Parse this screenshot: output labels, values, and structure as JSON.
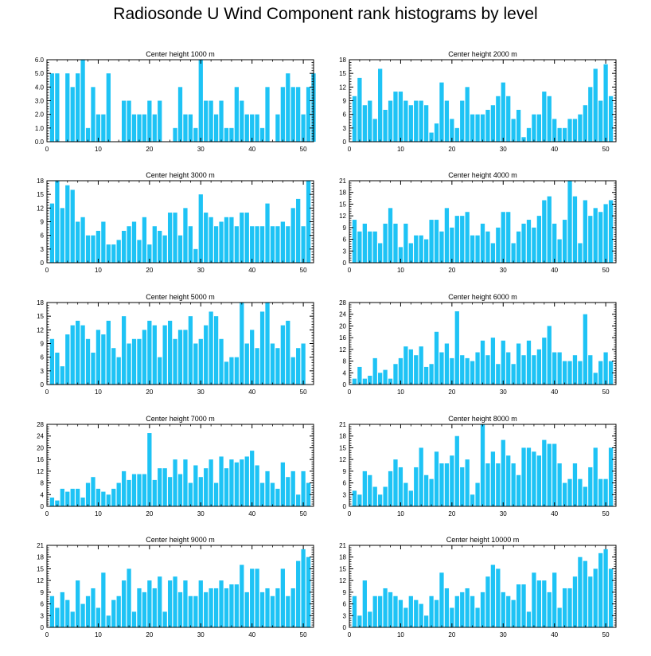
{
  "title": "Radiosonde U Wind Component rank histograms by level",
  "colors": {
    "bar": "#1ec3f5",
    "axis": "#000000",
    "background": "#ffffff"
  },
  "chart_data": [
    {
      "type": "bar",
      "title": "Center height 1000 m",
      "xlabel": "",
      "ylabel": "",
      "xlim": [
        0,
        52
      ],
      "ylim": [
        0,
        6.0
      ],
      "yticks": [
        0.0,
        1.0,
        2.0,
        3.0,
        4.0,
        5.0,
        6.0
      ],
      "ytick_decimals": 1,
      "xticks": [
        0,
        10,
        20,
        30,
        40,
        50
      ],
      "values": [
        5,
        5,
        0,
        5,
        4,
        5,
        6,
        1,
        4,
        2,
        2,
        5,
        0,
        0,
        3,
        3,
        2,
        2,
        2,
        3,
        2,
        3,
        0,
        0,
        1,
        4,
        2,
        2,
        1,
        6,
        3,
        3,
        2,
        3,
        1,
        1,
        4,
        3,
        2,
        2,
        2,
        1,
        4,
        0,
        2,
        4,
        5,
        4,
        4,
        2,
        4,
        5
      ]
    },
    {
      "type": "bar",
      "title": "Center height 2000 m",
      "xlabel": "",
      "ylabel": "",
      "xlim": [
        0,
        52
      ],
      "ylim": [
        0,
        18
      ],
      "yticks": [
        0,
        3,
        6,
        9,
        12,
        15,
        18
      ],
      "ytick_decimals": 0,
      "xticks": [
        0,
        10,
        20,
        30,
        40,
        50
      ],
      "values": [
        10,
        14,
        8,
        9,
        5,
        16,
        7,
        9,
        11,
        11,
        9,
        8,
        9,
        9,
        8,
        2,
        4,
        13,
        9,
        5,
        3,
        9,
        12,
        6,
        6,
        6,
        7,
        8,
        10,
        13,
        10,
        5,
        7,
        1,
        3,
        6,
        6,
        11,
        10,
        5,
        3,
        3,
        5,
        5,
        6,
        8,
        12,
        16,
        9,
        17,
        10
      ]
    },
    {
      "type": "bar",
      "title": "Center height 3000 m",
      "xlabel": "",
      "ylabel": "",
      "xlim": [
        0,
        52
      ],
      "ylim": [
        0,
        18
      ],
      "yticks": [
        0,
        3,
        6,
        9,
        12,
        15,
        18
      ],
      "ytick_decimals": 0,
      "xticks": [
        0,
        10,
        20,
        30,
        40,
        50
      ],
      "values": [
        13,
        18,
        12,
        17,
        16,
        9,
        10,
        6,
        6,
        7,
        9,
        4,
        4,
        5,
        7,
        8,
        9,
        5,
        10,
        4,
        8,
        7,
        6,
        11,
        11,
        6,
        12,
        8,
        3,
        15,
        11,
        10,
        8,
        9,
        10,
        10,
        8,
        11,
        11,
        8,
        8,
        8,
        13,
        8,
        8,
        9,
        8,
        12,
        14,
        8,
        18
      ]
    },
    {
      "type": "bar",
      "title": "Center height 4000 m",
      "xlabel": "",
      "ylabel": "",
      "xlim": [
        0,
        52
      ],
      "ylim": [
        0,
        21
      ],
      "yticks": [
        0,
        3,
        6,
        9,
        12,
        15,
        18,
        21
      ],
      "ytick_decimals": 0,
      "xticks": [
        0,
        10,
        20,
        30,
        40,
        50
      ],
      "values": [
        11,
        8,
        10,
        8,
        8,
        5,
        10,
        14,
        10,
        4,
        10,
        5,
        7,
        7,
        6,
        11,
        11,
        8,
        14,
        9,
        12,
        12,
        13,
        7,
        7,
        10,
        8,
        5,
        9,
        13,
        13,
        5,
        8,
        10,
        11,
        9,
        12,
        16,
        17,
        10,
        6,
        11,
        21,
        17,
        5,
        16,
        12,
        14,
        13,
        15,
        16
      ]
    },
    {
      "type": "bar",
      "title": "Center height 5000 m",
      "xlabel": "",
      "ylabel": "",
      "xlim": [
        0,
        52
      ],
      "ylim": [
        0,
        18
      ],
      "yticks": [
        0,
        3,
        6,
        9,
        12,
        15,
        18
      ],
      "ytick_decimals": 0,
      "xticks": [
        0,
        10,
        20,
        30,
        40,
        50
      ],
      "values": [
        10,
        7,
        4,
        11,
        13,
        14,
        13,
        10,
        7,
        12,
        11,
        14,
        8,
        6,
        15,
        9,
        10,
        10,
        12,
        14,
        13,
        6,
        13,
        14,
        10,
        12,
        12,
        15,
        9,
        10,
        13,
        16,
        15,
        10,
        5,
        6,
        6,
        18,
        9,
        12,
        8,
        16,
        18,
        9,
        8,
        13,
        14,
        6,
        8,
        9
      ]
    },
    {
      "type": "bar",
      "title": "Center height 6000 m",
      "xlabel": "",
      "ylabel": "",
      "xlim": [
        0,
        52
      ],
      "ylim": [
        0,
        28
      ],
      "yticks": [
        0,
        4,
        8,
        12,
        16,
        20,
        24,
        28
      ],
      "ytick_decimals": 0,
      "xticks": [
        0,
        10,
        20,
        30,
        40,
        50
      ],
      "values": [
        2,
        6,
        2,
        3,
        9,
        4,
        5,
        2,
        7,
        9,
        13,
        12,
        10,
        13,
        6,
        7,
        18,
        11,
        14,
        9,
        25,
        10,
        9,
        8,
        11,
        15,
        10,
        16,
        7,
        15,
        11,
        7,
        14,
        10,
        15,
        10,
        12,
        16,
        20,
        11,
        11,
        8,
        8,
        10,
        8,
        24,
        10,
        4,
        8,
        11,
        8
      ]
    },
    {
      "type": "bar",
      "title": "Center height 7000 m",
      "xlabel": "",
      "ylabel": "",
      "xlim": [
        0,
        52
      ],
      "ylim": [
        0,
        28
      ],
      "yticks": [
        0,
        4,
        8,
        12,
        16,
        20,
        24,
        28
      ],
      "ytick_decimals": 0,
      "xticks": [
        0,
        10,
        20,
        30,
        40,
        50
      ],
      "values": [
        3,
        2,
        6,
        5,
        6,
        6,
        3,
        8,
        10,
        6,
        5,
        4,
        6,
        8,
        12,
        9,
        11,
        11,
        11,
        25,
        9,
        13,
        13,
        10,
        16,
        11,
        16,
        8,
        14,
        10,
        13,
        16,
        8,
        17,
        13,
        16,
        15,
        16,
        17,
        19,
        14,
        8,
        12,
        8,
        6,
        15,
        10,
        12,
        4,
        12,
        8
      ]
    },
    {
      "type": "bar",
      "title": "Center height 8000 m",
      "xlabel": "",
      "ylabel": "",
      "xlim": [
        0,
        52
      ],
      "ylim": [
        0,
        21
      ],
      "yticks": [
        0,
        3,
        6,
        9,
        12,
        15,
        18,
        21
      ],
      "ytick_decimals": 0,
      "xticks": [
        0,
        10,
        20,
        30,
        40,
        50
      ],
      "values": [
        4,
        3,
        9,
        8,
        5,
        3,
        5,
        9,
        12,
        10,
        6,
        4,
        10,
        15,
        8,
        7,
        14,
        11,
        11,
        13,
        18,
        10,
        12,
        3,
        6,
        21,
        11,
        14,
        11,
        17,
        13,
        11,
        8,
        15,
        15,
        14,
        13,
        17,
        16,
        16,
        11,
        6,
        7,
        11,
        7,
        5,
        10,
        15,
        7,
        7,
        15
      ]
    },
    {
      "type": "bar",
      "title": "Center height 9000 m",
      "xlabel": "",
      "ylabel": "",
      "xlim": [
        0,
        52
      ],
      "ylim": [
        0,
        21
      ],
      "yticks": [
        0,
        3,
        6,
        9,
        12,
        15,
        18,
        21
      ],
      "ytick_decimals": 0,
      "xticks": [
        0,
        10,
        20,
        30,
        40,
        50
      ],
      "values": [
        8,
        5,
        9,
        7,
        4,
        12,
        6,
        8,
        10,
        5,
        14,
        3,
        7,
        8,
        12,
        15,
        4,
        10,
        9,
        12,
        10,
        13,
        4,
        12,
        13,
        9,
        12,
        8,
        8,
        12,
        9,
        10,
        10,
        12,
        10,
        11,
        11,
        16,
        9,
        15,
        15,
        9,
        10,
        8,
        10,
        15,
        8,
        10,
        17,
        20,
        18
      ]
    },
    {
      "type": "bar",
      "title": "Center height 10000 m",
      "xlabel": "",
      "ylabel": "",
      "xlim": [
        0,
        52
      ],
      "ylim": [
        0,
        21
      ],
      "yticks": [
        0,
        3,
        6,
        9,
        12,
        15,
        18,
        21
      ],
      "ytick_decimals": 0,
      "xticks": [
        0,
        10,
        20,
        30,
        40,
        50
      ],
      "values": [
        8,
        3,
        12,
        4,
        8,
        8,
        10,
        9,
        8,
        7,
        5,
        8,
        7,
        6,
        3,
        8,
        7,
        14,
        10,
        5,
        8,
        9,
        10,
        8,
        5,
        9,
        13,
        16,
        15,
        9,
        8,
        7,
        11,
        11,
        4,
        14,
        12,
        12,
        9,
        14,
        5,
        10,
        10,
        13,
        18,
        17,
        13,
        15,
        19,
        20,
        15
      ]
    }
  ]
}
